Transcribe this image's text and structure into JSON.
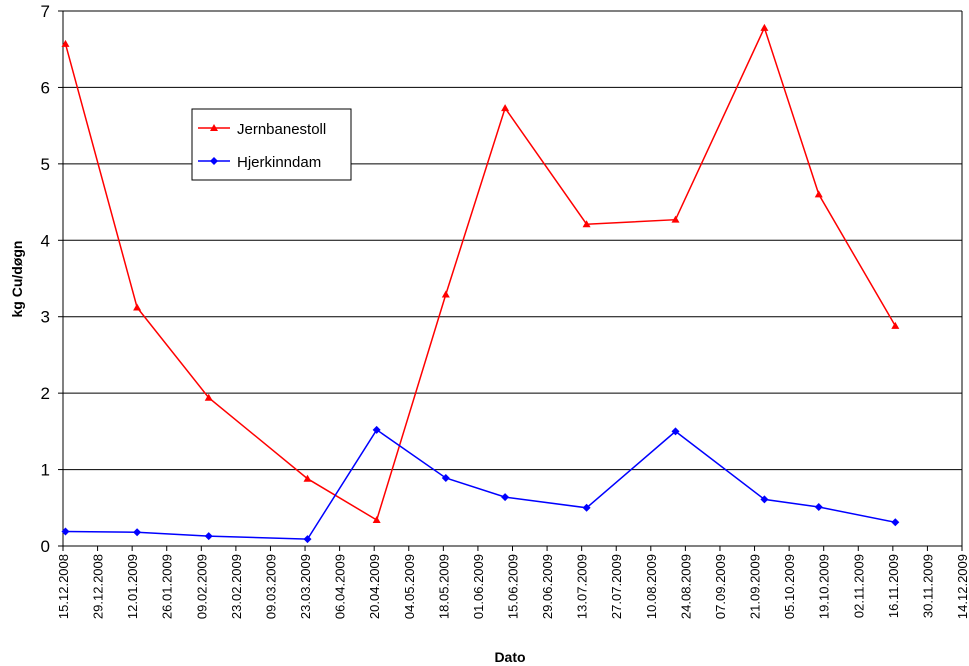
{
  "chart_data": {
    "type": "line",
    "xlabel": "Dato",
    "ylabel": "kg Cu/døgn",
    "ylim": [
      0,
      7
    ],
    "yticks": [
      "0",
      "1",
      "2",
      "3",
      "4",
      "5",
      "6",
      "7"
    ],
    "xlim": [
      "15.12.2008",
      "14.12.2009"
    ],
    "xticks": [
      "15.12.2008",
      "29.12.2008",
      "12.01.2009",
      "26.01.2009",
      "09.02.2009",
      "23.02.2009",
      "09.03.2009",
      "23.03.2009",
      "06.04.2009",
      "20.04.2009",
      "04.05.2009",
      "18.05.2009",
      "01.06.2009",
      "15.06.2009",
      "29.06.2009",
      "13.07.2009",
      "27.07.2009",
      "10.08.2009",
      "24.08.2009",
      "07.09.2009",
      "21.09.2009",
      "05.10.2009",
      "19.10.2009",
      "02.11.2009",
      "16.11.2009",
      "30.11.2009",
      "14.12.2009"
    ],
    "grid": "horizontal",
    "legend_position": "upper-left",
    "series": [
      {
        "name": "Jernbanestoll",
        "color": "#ff0000",
        "marker": "triangle",
        "x": [
          "16.12.2008",
          "14.01.2009",
          "12.02.2009",
          "24.03.2009",
          "21.04.2009",
          "19.05.2009",
          "12.06.2009",
          "15.07.2009",
          "20.08.2009",
          "25.09.2009",
          "17.10.2009",
          "17.11.2009"
        ],
        "y": [
          6.57,
          3.12,
          1.94,
          0.88,
          0.34,
          3.29,
          5.73,
          4.21,
          4.27,
          6.78,
          4.6,
          2.88
        ]
      },
      {
        "name": "Hjerkinndam",
        "color": "#0000ff",
        "marker": "diamond",
        "x": [
          "16.12.2008",
          "14.01.2009",
          "12.02.2009",
          "24.03.2009",
          "21.04.2009",
          "19.05.2009",
          "12.06.2009",
          "15.07.2009",
          "20.08.2009",
          "25.09.2009",
          "17.10.2009",
          "17.11.2009"
        ],
        "y": [
          0.19,
          0.18,
          0.13,
          0.09,
          1.52,
          0.89,
          0.64,
          0.5,
          1.5,
          0.61,
          0.51,
          0.31
        ]
      }
    ]
  }
}
